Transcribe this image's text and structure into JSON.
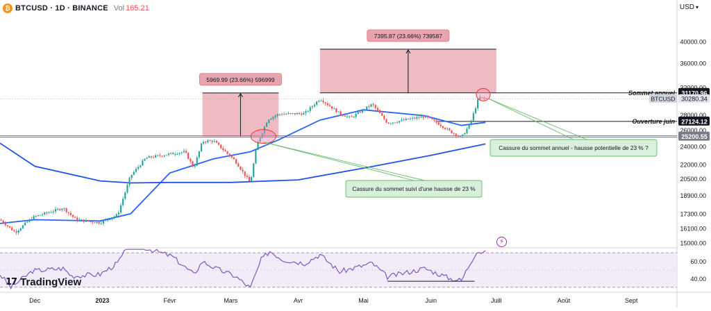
{
  "header": {
    "symbol": "BTCUSD · 1D · BINANCE",
    "vol_label": "Vol",
    "vol_value": "165.21",
    "coin_glyph": "₿",
    "currency": "USD"
  },
  "branding": {
    "logo_mark": "17",
    "logo_text": "TradingView"
  },
  "icons": {
    "indicator": "lightning-icon",
    "currency_dropdown": "chevron-down-icon"
  },
  "colors": {
    "bull": "#26a69a",
    "bear": "#ef5350",
    "ma_fast": "#2962ff",
    "ma_slow": "#1e53e5",
    "rsi_line": "#7e57c2",
    "rsi_fill": "#ede7f6",
    "target_box": "#e8a4ae",
    "callout_fill": "#d8f0dc",
    "callout_border": "#66bb6a",
    "highlight": "#f48fb1"
  },
  "chart_data": {
    "type": "candlestick",
    "title": "BTCUSD · 1D · BINANCE",
    "y_axis": {
      "scale": "log",
      "ticks": [
        15000,
        16100,
        17300,
        18900,
        20500,
        22000,
        24000,
        26000,
        28000,
        32000,
        36000,
        40000
      ],
      "tick_labels": [
        "15000.00",
        "16100.00",
        "17300.00",
        "18900.00",
        "20500.00",
        "22000.00",
        "24000.00",
        "26000.00",
        "28000.00",
        "32000.00",
        "36000.00",
        "40000.00"
      ],
      "range": [
        14700,
        45500
      ]
    },
    "x_axis": {
      "range": [
        "2022-11-15",
        "2023-09-22"
      ],
      "ticks": [
        {
          "date": "2022-12-01",
          "label": "Déc"
        },
        {
          "date": "2023-01-01",
          "label": "2023"
        },
        {
          "date": "2023-02-01",
          "label": "Févr"
        },
        {
          "date": "2023-03-01",
          "label": "Mars"
        },
        {
          "date": "2023-04-01",
          "label": "Avr"
        },
        {
          "date": "2023-05-01",
          "label": "Mai"
        },
        {
          "date": "2023-06-01",
          "label": "Juin"
        },
        {
          "date": "2023-07-01",
          "label": "Juill"
        },
        {
          "date": "2023-08-01",
          "label": "Août"
        },
        {
          "date": "2023-09-01",
          "label": "Sept"
        }
      ]
    },
    "price_path": [
      [
        "2022-11-15",
        16800
      ],
      [
        "2022-11-22",
        15800
      ],
      [
        "2022-11-30",
        17000
      ],
      [
        "2022-12-14",
        17800
      ],
      [
        "2022-12-20",
        16800
      ],
      [
        "2022-12-31",
        16550
      ],
      [
        "2023-01-08",
        17200
      ],
      [
        "2023-01-14",
        20800
      ],
      [
        "2023-01-21",
        22700
      ],
      [
        "2023-01-31",
        23100
      ],
      [
        "2023-02-08",
        23400
      ],
      [
        "2023-02-12",
        21600
      ],
      [
        "2023-02-16",
        24600
      ],
      [
        "2023-02-21",
        24700
      ],
      [
        "2023-03-03",
        22400
      ],
      [
        "2023-03-10",
        20100
      ],
      [
        "2023-03-13",
        24200
      ],
      [
        "2023-03-18",
        27400
      ],
      [
        "2023-03-23",
        28100
      ],
      [
        "2023-04-04",
        28200
      ],
      [
        "2023-04-11",
        30300
      ],
      [
        "2023-04-20",
        28200
      ],
      [
        "2023-04-25",
        27600
      ],
      [
        "2023-05-05",
        29500
      ],
      [
        "2023-05-12",
        26900
      ],
      [
        "2023-05-29",
        27800
      ],
      [
        "2023-06-03",
        27100
      ],
      [
        "2023-06-10",
        25800
      ],
      [
        "2023-06-15",
        25100
      ],
      [
        "2023-06-19",
        26800
      ],
      [
        "2023-06-23",
        30500
      ],
      [
        "2023-06-26",
        30280
      ]
    ],
    "series": [
      {
        "name": "ma_fast",
        "values": [
          [
            "2022-11-15",
            16500
          ],
          [
            "2022-12-01",
            16800
          ],
          [
            "2022-12-31",
            16700
          ],
          [
            "2023-01-14",
            17300
          ],
          [
            "2023-02-01",
            21100
          ],
          [
            "2023-02-21",
            22600
          ],
          [
            "2023-03-10",
            23400
          ],
          [
            "2023-03-23",
            24800
          ],
          [
            "2023-04-11",
            27300
          ],
          [
            "2023-05-01",
            28700
          ],
          [
            "2023-05-29",
            27900
          ],
          [
            "2023-06-15",
            26600
          ],
          [
            "2023-06-26",
            27000
          ]
        ]
      },
      {
        "name": "ma_slow",
        "values": [
          [
            "2022-11-15",
            24400
          ],
          [
            "2022-12-01",
            21800
          ],
          [
            "2022-12-31",
            20300
          ],
          [
            "2023-01-14",
            20100
          ],
          [
            "2023-02-01",
            20150
          ],
          [
            "2023-03-01",
            20150
          ],
          [
            "2023-04-01",
            20400
          ],
          [
            "2023-05-01",
            21600
          ],
          [
            "2023-06-01",
            23000
          ],
          [
            "2023-06-26",
            24300
          ]
        ]
      }
    ],
    "levels": [
      {
        "name": "Sommet annuel",
        "value": 31170.96,
        "label": "31170.96",
        "style": "solid-black"
      },
      {
        "name": "Ouverture juin",
        "value": 27124.12,
        "label": "27124.12",
        "style": "solid-black"
      },
      {
        "name": "",
        "value": 25200.55,
        "label": "25200.55",
        "style": "double-gray"
      }
    ],
    "last_price": {
      "symbol": "BTCUSD",
      "value": 30280.34,
      "label": "30280.34"
    },
    "targets": [
      {
        "label": "5969.99 (23.66%) 596999",
        "from_date": "2023-02-16",
        "to_date": "2023-03-23",
        "low": 25200,
        "high": 31170
      },
      {
        "label": "7395.87 (23.66%) 739587",
        "from_date": "2023-04-11",
        "to_date": "2023-07-01",
        "low": 31170,
        "high": 38566
      }
    ],
    "annotations": [
      {
        "text": "Cassure du sommet suivi d'une hausse de 23 %",
        "points_to": "2023-03-16"
      },
      {
        "text": "Cassure du sommet annuel - hausse potentielle de 23 % ?",
        "points_to": "2023-06-25"
      }
    ],
    "rsi": {
      "ticks": [
        40,
        60
      ],
      "tick_labels": [
        "40.00",
        "60.00"
      ],
      "band": [
        30,
        70
      ],
      "range": [
        25,
        75
      ],
      "path": [
        [
          "2022-11-15",
          45
        ],
        [
          "2022-11-20",
          30
        ],
        [
          "2022-11-30",
          49
        ],
        [
          "2022-12-14",
          52
        ],
        [
          "2022-12-18",
          43
        ],
        [
          "2022-12-31",
          45
        ],
        [
          "2023-01-08",
          58
        ],
        [
          "2023-01-14",
          82
        ],
        [
          "2023-01-23",
          74
        ],
        [
          "2023-02-02",
          66
        ],
        [
          "2023-02-12",
          45
        ],
        [
          "2023-02-16",
          60
        ],
        [
          "2023-02-22",
          52
        ],
        [
          "2023-03-03",
          43
        ],
        [
          "2023-03-10",
          29
        ],
        [
          "2023-03-15",
          62
        ],
        [
          "2023-03-19",
          72
        ],
        [
          "2023-03-25",
          62
        ],
        [
          "2023-04-04",
          58
        ],
        [
          "2023-04-11",
          68
        ],
        [
          "2023-04-20",
          48
        ],
        [
          "2023-05-05",
          58
        ],
        [
          "2023-05-12",
          42
        ],
        [
          "2023-05-29",
          52
        ],
        [
          "2023-06-10",
          40
        ],
        [
          "2023-06-15",
          38
        ],
        [
          "2023-06-19",
          58
        ],
        [
          "2023-06-22",
          72
        ],
        [
          "2023-06-26",
          70
        ]
      ],
      "divergence_line": [
        [
          "2023-05-12",
          37
        ],
        [
          "2023-06-21",
          37
        ]
      ]
    }
  }
}
